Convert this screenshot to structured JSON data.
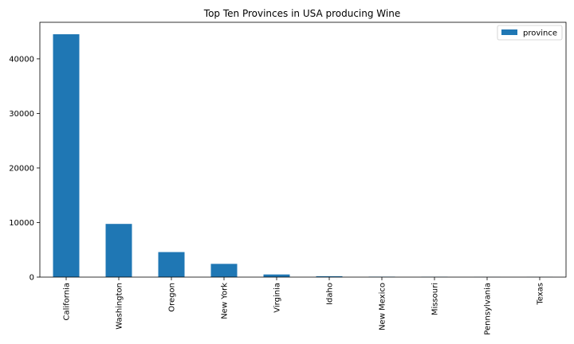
{
  "chart_data": {
    "type": "bar",
    "title": "Top Ten Provinces in USA producing Wine",
    "xlabel": "",
    "ylabel": "",
    "categories": [
      "California",
      "Washington",
      "Oregon",
      "New York",
      "Virginia",
      "Idaho",
      "New Mexico",
      "Missouri",
      "Pennsylvania",
      "Texas"
    ],
    "series": [
      {
        "name": "province",
        "color": "#1f77b4",
        "values": [
          44508,
          9750,
          4589,
          2428,
          485,
          164,
          77,
          48,
          25,
          23
        ]
      }
    ],
    "ylim": [
      0,
      46700
    ],
    "yticks": [
      0,
      10000,
      20000,
      30000,
      40000
    ],
    "grid": false,
    "legend_position": "top-right"
  }
}
